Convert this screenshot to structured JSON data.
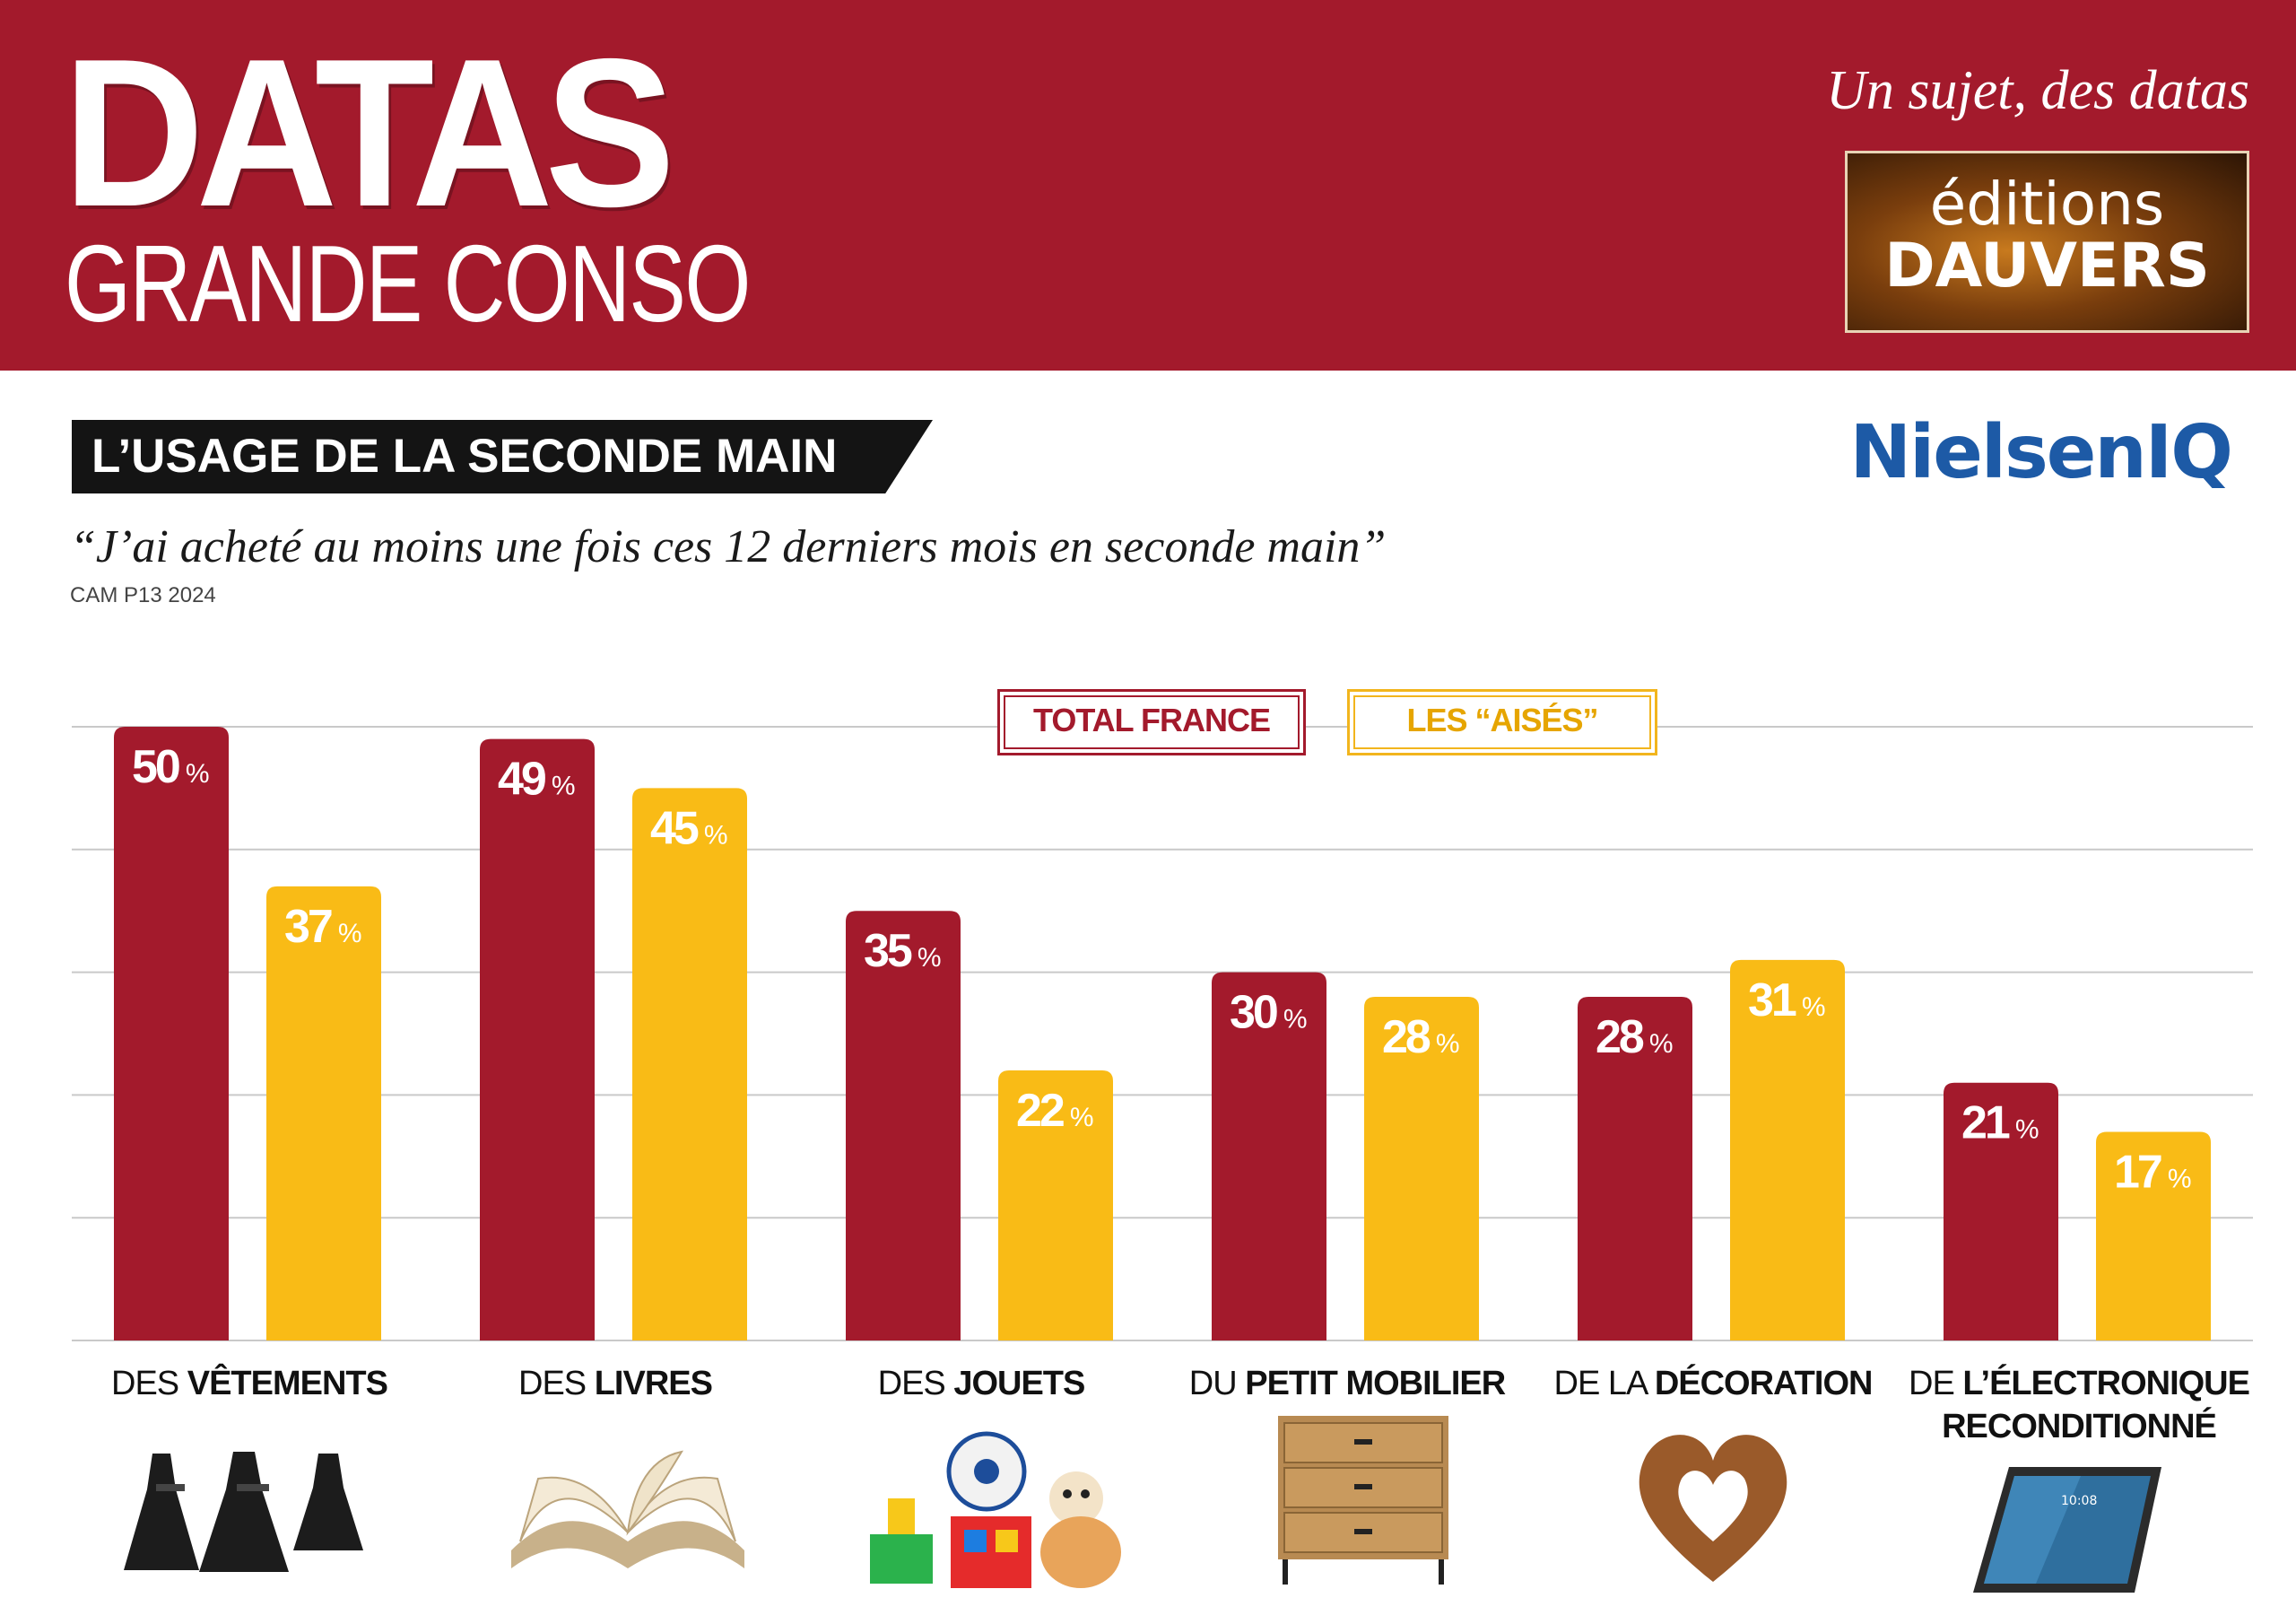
{
  "header": {
    "brand_main": "DATAS",
    "brand_sub": "GRANDE CONSO",
    "tagline": "Un sujet, des datas",
    "publisher_line1": "éditions",
    "publisher_line2": "DAUVERS",
    "header_color": "#a31a2c"
  },
  "section": {
    "title": "L’USAGE DE LA SECONDE MAIN",
    "partner_logo": "NielsenIQ",
    "question": "“J’ai acheté au moins une fois ces 12 derniers mois en seconde main”",
    "source": "CAM P13 2024"
  },
  "chart_data": {
    "type": "bar",
    "categories": [
      {
        "pre": "DES ",
        "main": "VÊTEMENTS",
        "line2": ""
      },
      {
        "pre": "DES ",
        "main": "LIVRES",
        "line2": ""
      },
      {
        "pre": "DES ",
        "main": "JOUETS",
        "line2": ""
      },
      {
        "pre": "DU ",
        "main": "PETIT MOBILIER",
        "line2": ""
      },
      {
        "pre": "DE LA ",
        "main": "DÉCORATION",
        "line2": ""
      },
      {
        "pre": "DE ",
        "main": "L’ÉLECTRONIQUE",
        "line2": "RECONDITIONNÉ"
      }
    ],
    "series": [
      {
        "name": "TOTAL FRANCE",
        "color": "#a31a2c",
        "values": [
          50,
          49,
          35,
          30,
          28,
          21
        ]
      },
      {
        "name": "LES “AISÉS”",
        "color": "#f9bb16",
        "values": [
          37,
          45,
          22,
          28,
          31,
          17
        ]
      }
    ],
    "unit": "%",
    "ylim": [
      0,
      50
    ],
    "grid": true,
    "legend_position": "top-center",
    "illustrations": [
      "dresses",
      "open-book",
      "toys",
      "chest-of-drawers",
      "wooden-heart",
      "tablet"
    ],
    "tablet_clock": "10:08"
  }
}
